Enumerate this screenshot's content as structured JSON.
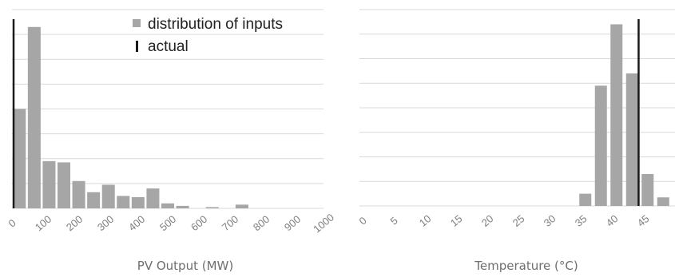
{
  "colors": {
    "bar": "#a6a6a6",
    "actual_line": "#1a1a1a",
    "grid": "#d9d9d9",
    "tick_text": "#7f7f7f"
  },
  "legend": {
    "distribution_label": "distribution of inputs",
    "actual_label": "actual",
    "placement": "top-right of left chart"
  },
  "chart_data": [
    {
      "type": "bar",
      "title": "",
      "xlabel": "PV Output (MW)",
      "ylabel": "",
      "categories": [
        "0",
        "50",
        "100",
        "150",
        "200",
        "250",
        "300",
        "350",
        "400",
        "450",
        "500",
        "550",
        "600",
        "650",
        "700",
        "750",
        "800",
        "850",
        "900",
        "950",
        "1000"
      ],
      "tick_labels": [
        "0",
        "100",
        "200",
        "300",
        "400",
        "500",
        "600",
        "700",
        "800",
        "900",
        "1000"
      ],
      "series": [
        {
          "name": "distribution of inputs",
          "values": [
            4.0,
            7.3,
            1.9,
            1.85,
            1.1,
            0.65,
            0.95,
            0.5,
            0.45,
            0.8,
            0.2,
            0.1,
            0,
            0.05,
            0,
            0.15,
            0,
            0,
            0,
            0,
            0
          ]
        }
      ],
      "actual": 0,
      "grid": true,
      "gridlines": 8
    },
    {
      "type": "bar",
      "title": "",
      "xlabel": "Temperature (°C)",
      "ylabel": "",
      "categories": [
        "0",
        "2.5",
        "5",
        "7.5",
        "10",
        "12.5",
        "15",
        "17.5",
        "20",
        "22.5",
        "25",
        "27.5",
        "30",
        "32.5",
        "35",
        "37.5",
        "40",
        "42.5",
        "45",
        "47.5"
      ],
      "tick_labels": [
        "0",
        "5",
        "10",
        "15",
        "20",
        "25",
        "30",
        "35",
        "40",
        "45"
      ],
      "series": [
        {
          "name": "distribution of inputs",
          "values": [
            0,
            0,
            0,
            0,
            0,
            0,
            0,
            0,
            0,
            0,
            0,
            0,
            0,
            0,
            0.5,
            4.9,
            7.4,
            5.4,
            1.3,
            0.35
          ]
        }
      ],
      "actual": 44.8,
      "grid": true,
      "gridlines": 8
    }
  ]
}
